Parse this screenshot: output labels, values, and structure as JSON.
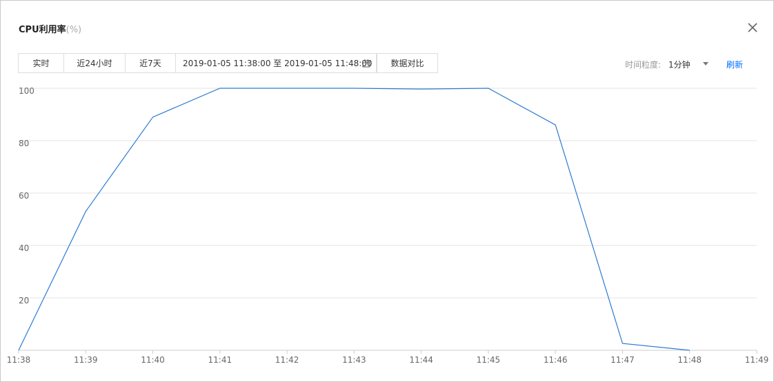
{
  "header": {
    "title": "CPU利用率",
    "unit": "(%)"
  },
  "toolbar": {
    "buttons": [
      "实时",
      "近24小时",
      "近7天"
    ],
    "date_range": "2019-01-05 11:38:00 至 2019-01-05 11:48:00",
    "compare": "数据对比",
    "granularity_label": "时间粒度:",
    "granularity_value": "1分钟",
    "refresh": "刷新"
  },
  "chart_data": {
    "type": "line",
    "color": "#2a7ad2",
    "categories": [
      "11:38",
      "11:39",
      "11:40",
      "11:41",
      "11:42",
      "11:43",
      "11:44",
      "11:45",
      "11:46",
      "11:47",
      "11:48",
      "11:49"
    ],
    "values": [
      0,
      53,
      89,
      100,
      100,
      100,
      99.7,
      100,
      86,
      2.6,
      0,
      null
    ],
    "ylim": [
      0,
      100
    ],
    "yticks": [
      20,
      40,
      60,
      80,
      100
    ],
    "grid": true
  }
}
